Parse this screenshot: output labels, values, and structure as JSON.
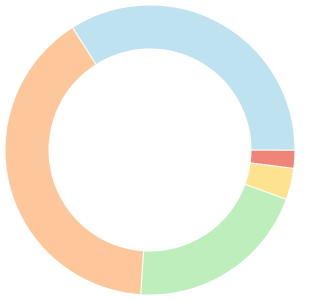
{
  "chart_data": {
    "type": "doughnut",
    "categories": [
      null,
      null,
      null,
      null,
      null
    ],
    "values": [
      34,
      2,
      3.5,
      20.5,
      40
    ],
    "colors": [
      "#bee2ef",
      "#ef8579",
      "#fde28f",
      "#bdeebb",
      "#fec79b"
    ]
  }
}
